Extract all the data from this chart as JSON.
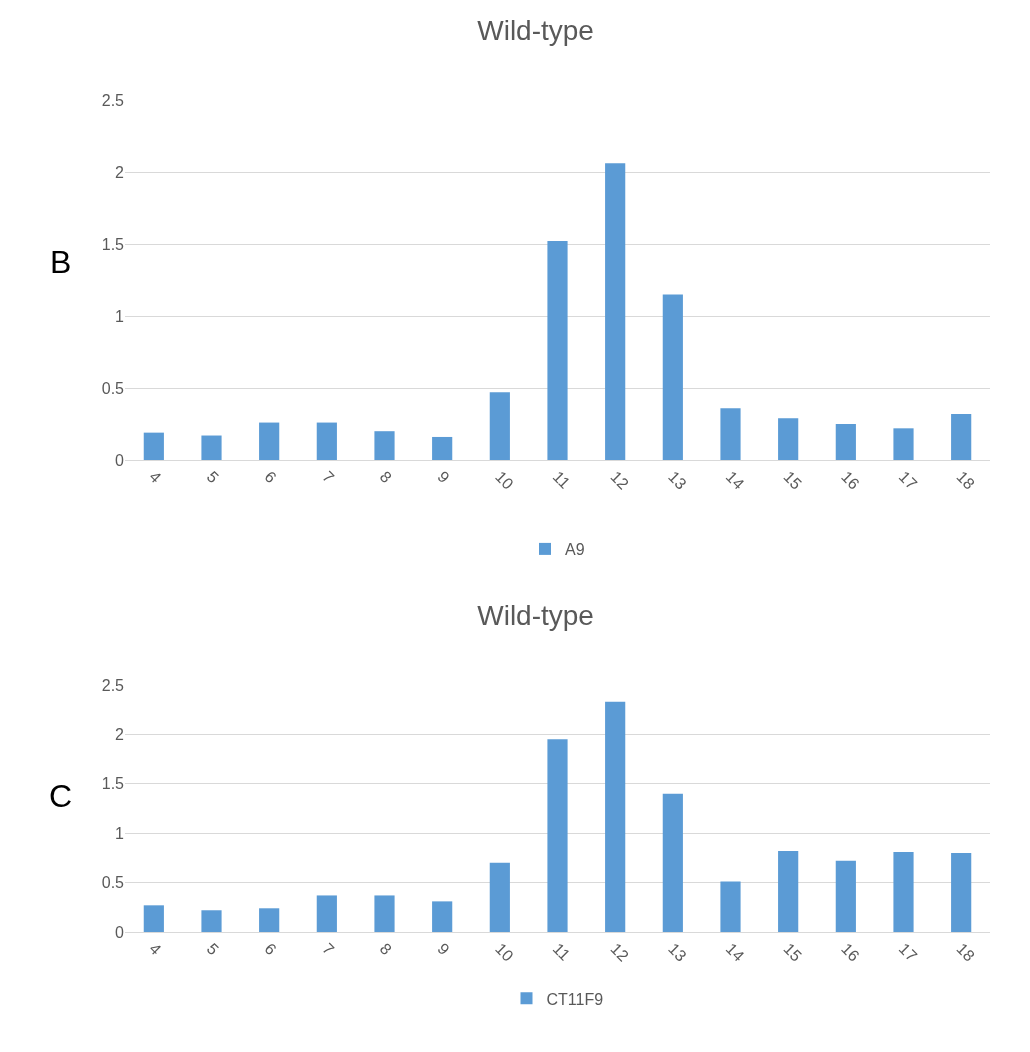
{
  "chart_data": [
    {
      "type": "bar",
      "title": "Wild-type",
      "categories": [
        "4",
        "5",
        "6",
        "7",
        "8",
        "9",
        "10",
        "11",
        "12",
        "13",
        "14",
        "15",
        "16",
        "17",
        "18"
      ],
      "series": [
        {
          "name": "A9",
          "color": "#5b9bd5",
          "values": [
            0.19,
            0.17,
            0.26,
            0.26,
            0.2,
            0.16,
            0.47,
            1.52,
            2.06,
            1.15,
            0.36,
            0.29,
            0.25,
            0.22,
            0.32
          ]
        }
      ],
      "ylim": [
        0,
        2.5
      ],
      "yticks": [
        0,
        0.5,
        1,
        1.5,
        2,
        2.5
      ],
      "grid": "y",
      "legend": "bottom",
      "annotations": [
        "B"
      ]
    },
    {
      "type": "bar",
      "title": "Wild-type",
      "categories": [
        "4",
        "5",
        "6",
        "7",
        "8",
        "9",
        "10",
        "11",
        "12",
        "13",
        "14",
        "15",
        "16",
        "17",
        "18"
      ],
      "series": [
        {
          "name": "CT11F9",
          "color": "#5b9bd5",
          "values": [
            0.27,
            0.22,
            0.24,
            0.37,
            0.37,
            0.31,
            0.7,
            1.95,
            2.33,
            1.4,
            0.51,
            0.82,
            0.72,
            0.81,
            0.8
          ]
        }
      ],
      "ylim": [
        0,
        2.5
      ],
      "yticks": [
        0,
        0.5,
        1,
        1.5,
        2,
        2.5
      ],
      "grid": "y",
      "legend": "bottom",
      "annotations": [
        "C"
      ]
    }
  ]
}
